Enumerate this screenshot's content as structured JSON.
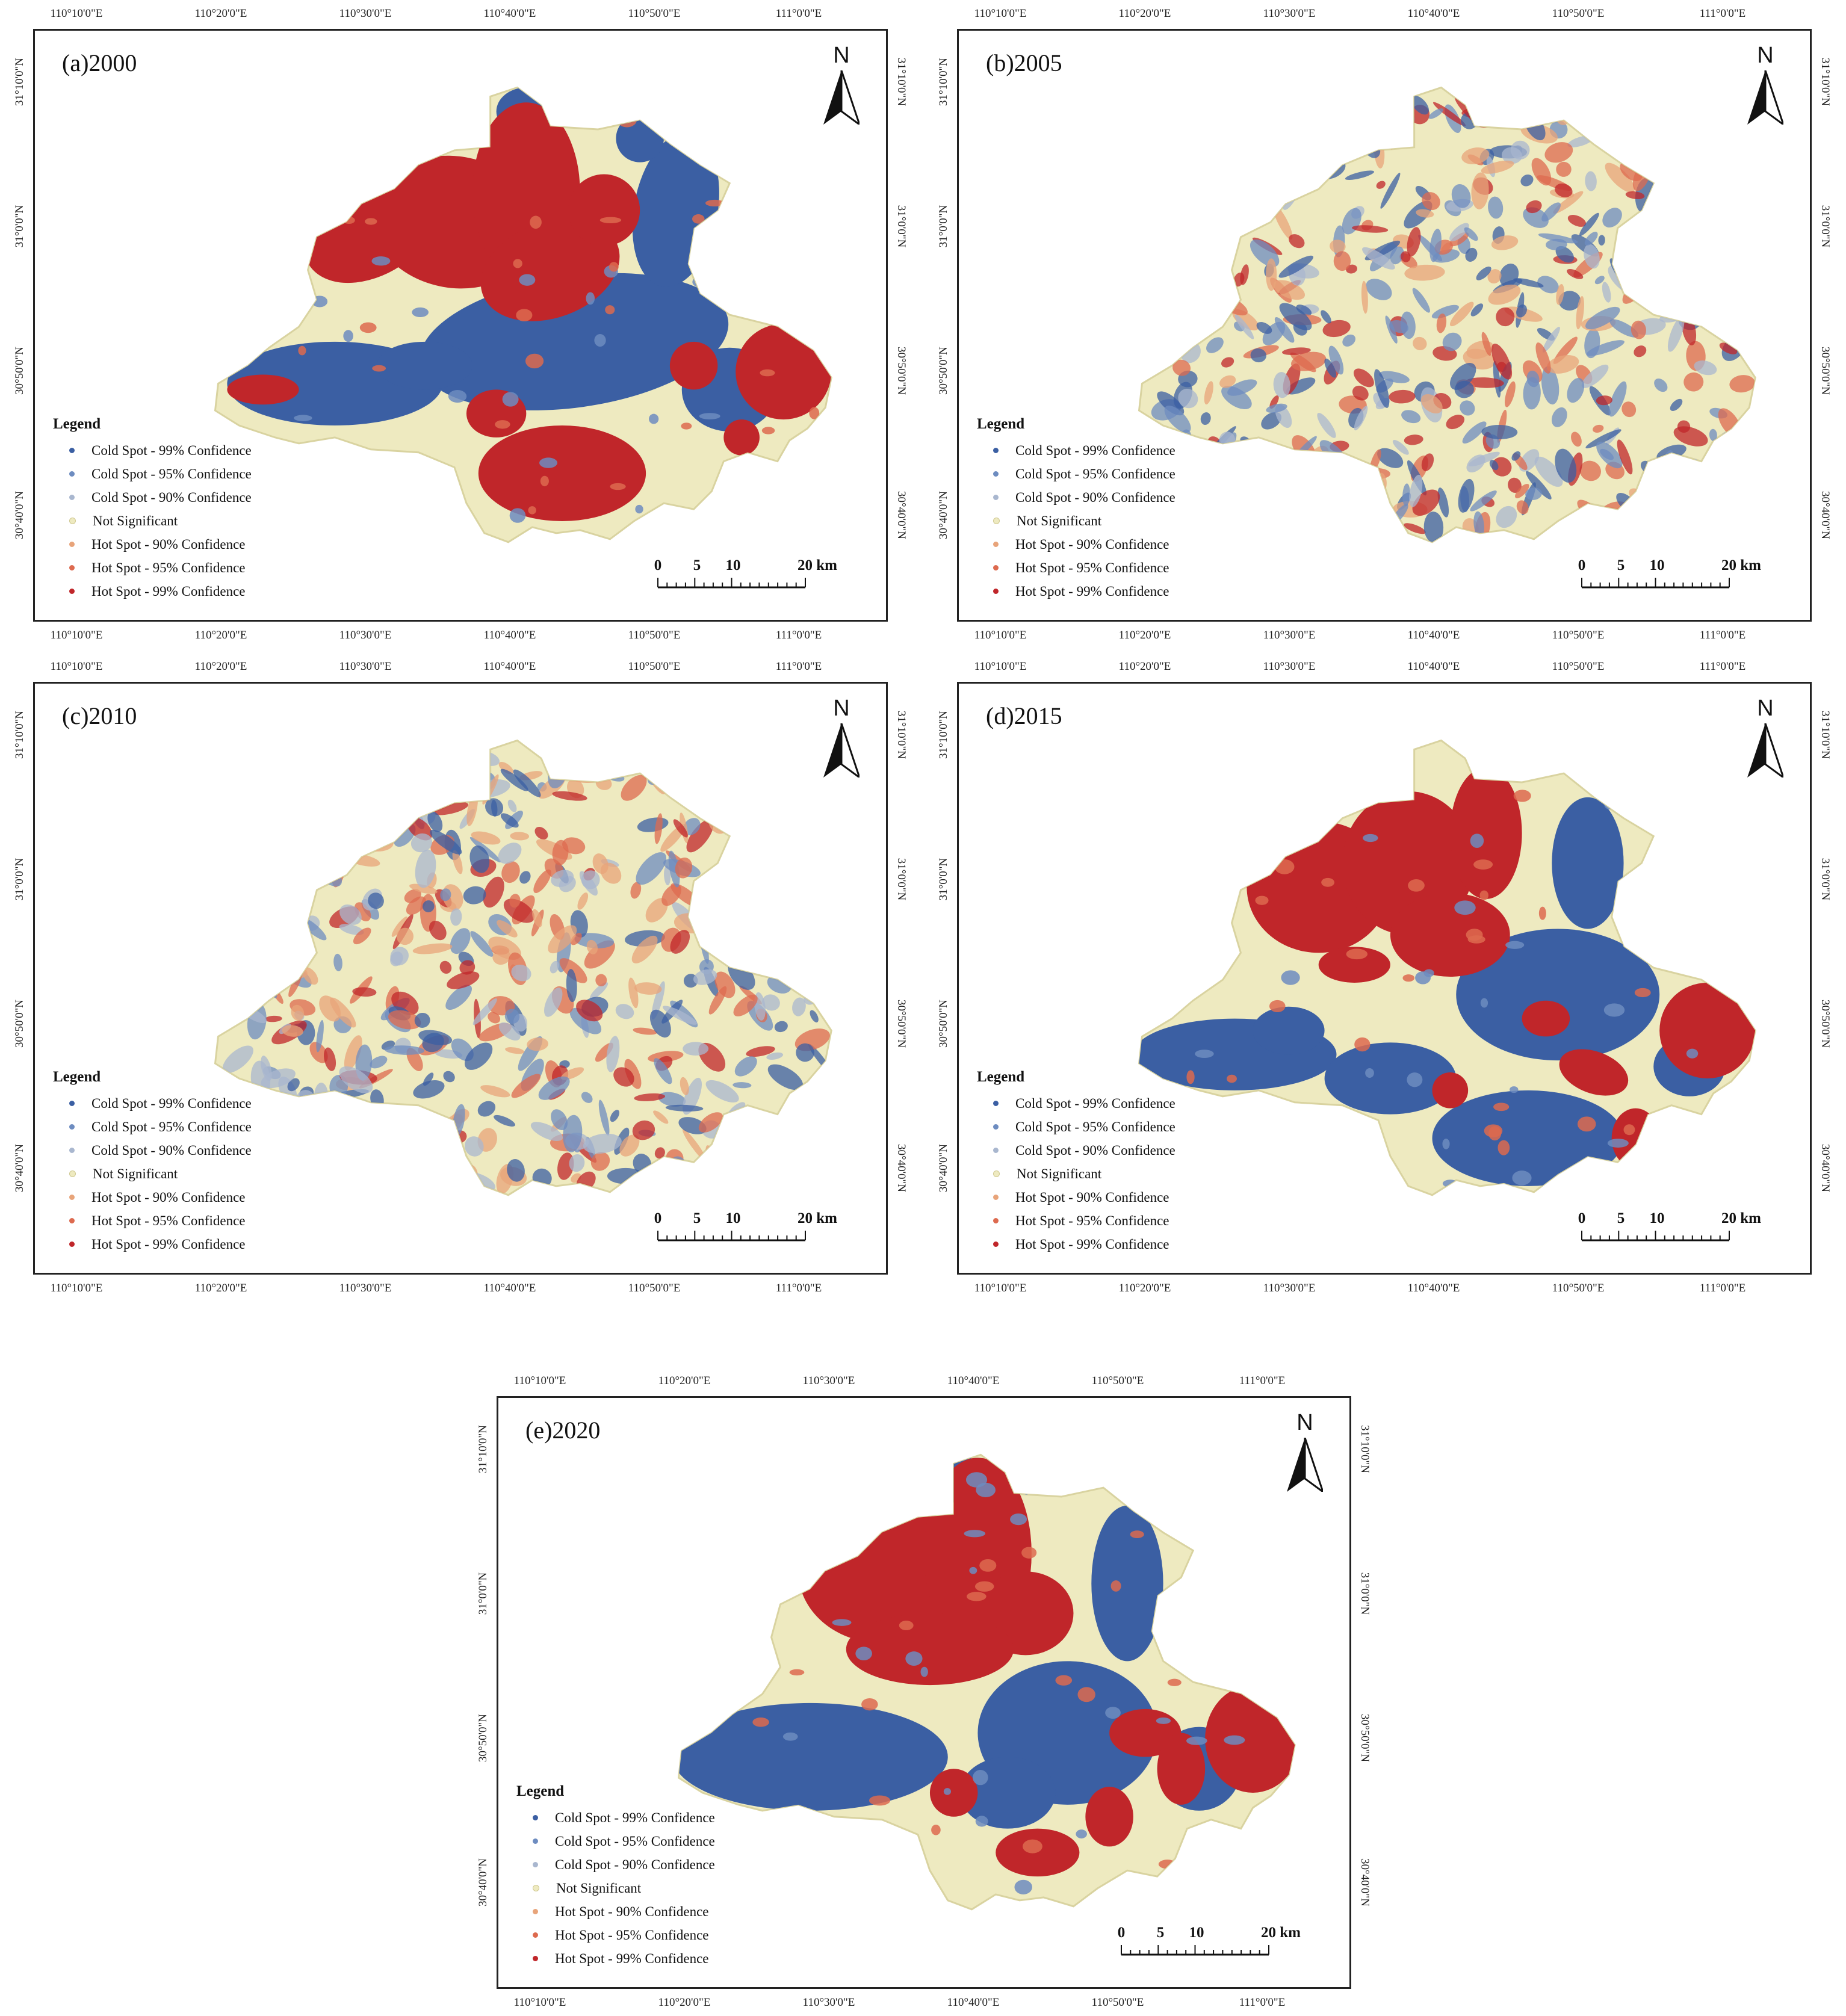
{
  "panels": [
    {
      "label": "(a)2000",
      "pattern": "strong_a"
    },
    {
      "label": "(b)2005",
      "pattern": "mixed_b"
    },
    {
      "label": "(c)2010",
      "pattern": "mixed_c"
    },
    {
      "label": "(d)2015",
      "pattern": "strong_d"
    },
    {
      "label": "(e)2020",
      "pattern": "strong_e"
    }
  ],
  "axes": {
    "longitude": [
      "110°10'0\"E",
      "110°20'0\"E",
      "110°30'0\"E",
      "110°40'0\"E",
      "110°50'0\"E",
      "111°0'0\"E"
    ],
    "latitude": [
      "31°10'0\"N",
      "31°0'0\"N",
      "30°50'0\"N",
      "30°40'0\"N"
    ]
  },
  "north_label": "N",
  "legend": {
    "title": "Legend",
    "items": [
      {
        "label": "Cold Spot - 99% Confidence",
        "color": "#3b5fa3"
      },
      {
        "label": "Cold Spot - 95% Confidence",
        "color": "#6d8cc0"
      },
      {
        "label": "Cold Spot - 90% Confidence",
        "color": "#a9b7cf"
      },
      {
        "label": "Not Significant",
        "color": "#eeeac0"
      },
      {
        "label": "Hot Spot - 90% Confidence",
        "color": "#e8a47a"
      },
      {
        "label": "Hot Spot - 95% Confidence",
        "color": "#dd6a4f"
      },
      {
        "label": "Hot Spot - 99% Confidence",
        "color": "#c0262a"
      }
    ]
  },
  "scale_bar": {
    "ticks": [
      "0",
      "5",
      "10",
      "20 km"
    ]
  }
}
